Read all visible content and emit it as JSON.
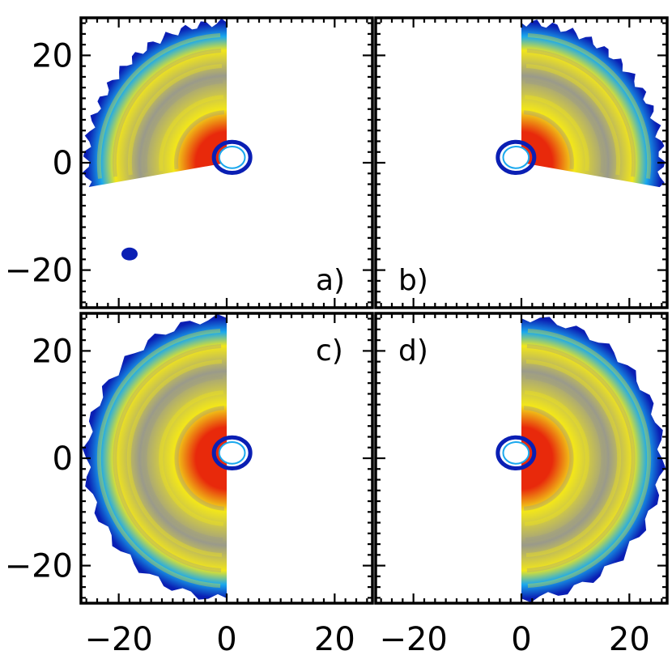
{
  "chart_data": {
    "type": "heatmap",
    "grid": false,
    "axes": {
      "xlim": [
        -27,
        27
      ],
      "ylim": [
        -27,
        27
      ],
      "x_major_ticks": [
        -20,
        0,
        20
      ],
      "y_major_ticks": [
        -20,
        0,
        20
      ],
      "minor_step": 2
    },
    "colormap": {
      "low": "#0a1fb4",
      "mid_low": "#1aa8ee",
      "mid": "#9a9a8a",
      "mid_high": "#f2e61a",
      "high": "#e8290b"
    },
    "panels": [
      {
        "label": "a)",
        "label_position": "bottom-right",
        "regions": [
          {
            "kind": "wedge",
            "center": [
              0,
              0
            ],
            "r_outer": 26,
            "theta_start": 90,
            "theta_end": 190,
            "low_edge": "blue",
            "core": "yellow",
            "hot_side": "near-origin"
          },
          {
            "kind": "blob",
            "center": [
              -18,
              -17
            ],
            "size": 1.5,
            "color": "blue"
          }
        ],
        "ring": {
          "center": [
            1,
            1
          ],
          "radius": 2.5
        }
      },
      {
        "label": "b)",
        "label_position": "bottom-left",
        "regions": [
          {
            "kind": "wedge",
            "center": [
              0,
              0
            ],
            "r_outer": 26,
            "theta_start": -10,
            "theta_end": 90,
            "low_edge": "blue",
            "core": "yellow",
            "hot_side": "near-origin"
          }
        ],
        "ring": {
          "center": [
            -1,
            1
          ],
          "radius": 2.5
        }
      },
      {
        "label": "c)",
        "label_position": "top-right",
        "regions": [
          {
            "kind": "half-disc",
            "center": [
              0,
              0
            ],
            "r_outer": 26,
            "theta_start": 90,
            "theta_end": 270,
            "low_edge": "blue",
            "core": "yellow",
            "hot_side": "near-origin"
          }
        ],
        "ring": {
          "center": [
            1,
            1
          ],
          "radius": 2.5
        }
      },
      {
        "label": "d)",
        "label_position": "top-left",
        "regions": [
          {
            "kind": "half-disc",
            "center": [
              0,
              0
            ],
            "r_outer": 26,
            "theta_start": -90,
            "theta_end": 90,
            "low_edge": "blue",
            "core": "yellow",
            "hot_side": "near-origin"
          }
        ],
        "ring": {
          "center": [
            -1,
            1
          ],
          "radius": 2.5
        }
      }
    ],
    "x_tick_labels": [
      "−20",
      "0",
      "20"
    ],
    "y_tick_labels": [
      "20",
      "0",
      "−20"
    ]
  }
}
